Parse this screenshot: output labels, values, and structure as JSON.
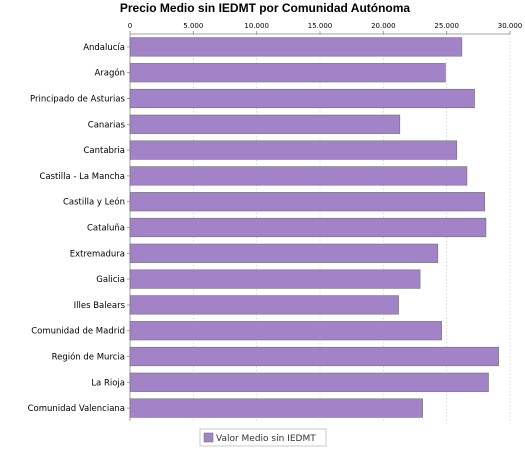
{
  "chart_data": {
    "type": "bar",
    "orientation": "horizontal",
    "title": "Precio Medio sin IEDMT por Comunidad Autónoma",
    "xlim": [
      0,
      30000
    ],
    "x_ticks": [
      0,
      5000,
      10000,
      15000,
      20000,
      25000,
      30000
    ],
    "x_tick_labels": [
      "0",
      "5.000",
      "10.000",
      "15.000",
      "20.000",
      "25.000",
      "30.000"
    ],
    "x_axis_position": "top",
    "grid": "vertical dotted",
    "categories": [
      "Andalucía",
      "Aragón",
      "Principado de Asturias",
      "Canarias",
      "Cantabria",
      "Castilla - La Mancha",
      "Castilla y León",
      "Cataluña",
      "Extremadura",
      "Galicia",
      "Illes Balears",
      "Comunidad de Madrid",
      "Región de Murcia",
      "La Rioja",
      "Comunidad Valenciana"
    ],
    "series": [
      {
        "name": "Valor Medio sin IEDMT",
        "color": "#a383c7",
        "values": [
          26200,
          24900,
          27200,
          21300,
          25800,
          26600,
          28000,
          28100,
          24300,
          22900,
          21200,
          24600,
          29100,
          28300,
          23100
        ]
      }
    ],
    "legend_position": "bottom-center"
  }
}
